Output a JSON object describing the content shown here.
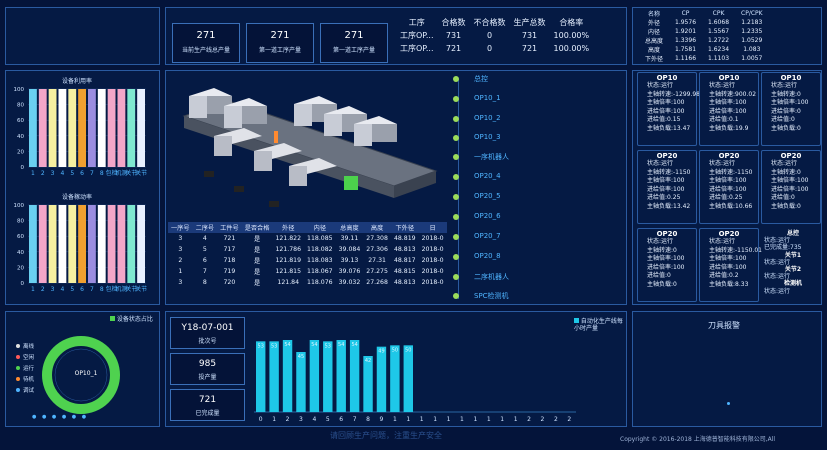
{
  "header": {
    "kpis": [
      {
        "value": "271",
        "label": "当前生产线总产量"
      },
      {
        "value": "271",
        "label": "第一道工序产量"
      },
      {
        "value": "271",
        "label": "第一道工序产量"
      }
    ],
    "process_table": {
      "columns": [
        "工序",
        "合格数",
        "不合格数",
        "生产总数",
        "合格率"
      ],
      "rows": [
        [
          "工序OP...",
          "731",
          "0",
          "731",
          "100.00%"
        ],
        [
          "工序OP...",
          "721",
          "0",
          "721",
          "100.00%"
        ]
      ]
    },
    "cp_table": {
      "columns": [
        "名称",
        "CP",
        "CPK",
        "CP/CPK"
      ],
      "rows": [
        [
          "外径",
          "1.9576",
          "1.6068",
          "1.2183"
        ],
        [
          "内径",
          "1.9201",
          "1.5567",
          "1.2335"
        ],
        [
          "总高度",
          "1.3396",
          "1.2722",
          "1.0529"
        ],
        [
          "高度",
          "1.7581",
          "1.6234",
          "1.083"
        ],
        [
          "下外径",
          "1.1166",
          "1.1103",
          "1.0057"
        ]
      ]
    }
  },
  "utilization_chart": {
    "title": "设备利用率",
    "y_ticks": [
      "100",
      "80",
      "60",
      "40",
      "20",
      "0"
    ],
    "x_labels": [
      "1",
      "2",
      "3",
      "4",
      "5",
      "6",
      "7",
      "8",
      "包检",
      "机测",
      "关节",
      "关节"
    ],
    "chart_data": {
      "type": "bar",
      "ylim": [
        0,
        100
      ],
      "categories": [
        "1",
        "2",
        "3",
        "4",
        "5",
        "6",
        "7",
        "8",
        "包检",
        "机测",
        "关节1",
        "关节2"
      ],
      "values": [
        100,
        100,
        100,
        100,
        100,
        100,
        100,
        100,
        100,
        100,
        100,
        100
      ],
      "colors": [
        "#6ad0f0",
        "#f3a6c8",
        "#f6f0a0",
        "#ffffff",
        "#f6f0a0",
        "#f0a030",
        "#9b8de0",
        "#ffffff",
        "#f3a6c8",
        "#f3a6c8",
        "#7fe8d0",
        "#e8f0ff"
      ]
    }
  },
  "activation_chart": {
    "title": "设备稼动率",
    "y_ticks": [
      "100",
      "80",
      "60",
      "40",
      "20",
      "0"
    ],
    "x_labels": [
      "1",
      "2",
      "3",
      "4",
      "5",
      "6",
      "7",
      "8",
      "包检",
      "机测",
      "关节",
      "关节"
    ],
    "chart_data": {
      "type": "bar",
      "ylim": [
        0,
        100
      ],
      "categories": [
        "1",
        "2",
        "3",
        "4",
        "5",
        "6",
        "7",
        "8",
        "包检",
        "机测",
        "关节1",
        "关节2"
      ],
      "values": [
        100,
        100,
        100,
        100,
        100,
        100,
        100,
        100,
        100,
        100,
        100,
        100
      ],
      "colors": [
        "#6ad0f0",
        "#f3a6c8",
        "#f6f0a0",
        "#ffffff",
        "#f6f0a0",
        "#f0a030",
        "#9b8de0",
        "#ffffff",
        "#f3a6c8",
        "#f3a6c8",
        "#7fe8d0",
        "#e8f0ff"
      ]
    }
  },
  "data_table": {
    "columns": [
      "一序号",
      "二序号",
      "工件号",
      "是否合格",
      "外径",
      "内径",
      "总高度",
      "高度",
      "下外径",
      "日"
    ],
    "rows": [
      [
        "3",
        "4",
        "721",
        "是",
        "121.822",
        "118.085",
        "39.11",
        "27.308",
        "48.819",
        "2018-0"
      ],
      [
        "3",
        "5",
        "717",
        "是",
        "121.786",
        "118.082",
        "39.084",
        "27.306",
        "48.813",
        "2018-0"
      ],
      [
        "2",
        "6",
        "718",
        "是",
        "121.819",
        "118.083",
        "39.13",
        "27.31",
        "48.817",
        "2018-0"
      ],
      [
        "1",
        "7",
        "719",
        "是",
        "121.815",
        "118.067",
        "39.076",
        "27.275",
        "48.815",
        "2018-0"
      ],
      [
        "3",
        "8",
        "720",
        "是",
        "121.84",
        "118.076",
        "39.032",
        "27.268",
        "48.813",
        "2018-0"
      ]
    ]
  },
  "nav_items": [
    "总控",
    "OP10_1",
    "OP10_2",
    "OP10_3",
    "一序机器人",
    "OP20_4",
    "OP20_5",
    "OP20_6",
    "OP20_7",
    "OP20_8",
    "二序机器人",
    "SPC检测机"
  ],
  "machine_cards": [
    {
      "title": "OP10",
      "rows": [
        "状态:运行",
        "主轴转速:-1299.98",
        "主轴倍率:100",
        "进给倍率:100",
        "进给值:0.15",
        "主轴负载:13.47"
      ]
    },
    {
      "title": "OP10",
      "rows": [
        "状态:运行",
        "主轴转速:900.02",
        "主轴倍率:100",
        "进给倍率:100",
        "进给值:0.1",
        "主轴负载:19.9"
      ]
    },
    {
      "title": "OP10",
      "rows": [
        "状态:运行",
        "主轴转速:0",
        "主轴倍率:100",
        "进给倍率:0",
        "进给值:0",
        "主轴负载:0"
      ]
    },
    {
      "title": "OP20",
      "rows": [
        "状态:运行",
        "主轴转速:-1150",
        "主轴倍率:100",
        "进给倍率:100",
        "进给值:0.25",
        "主轴负载:13.42"
      ]
    },
    {
      "title": "OP20",
      "rows": [
        "状态:运行",
        "主轴转速:-1150",
        "主轴倍率:100",
        "进给倍率:100",
        "进给值:0.25",
        "主轴负载:10.66"
      ]
    },
    {
      "title": "OP20",
      "rows": [
        "状态:运行",
        "主轴转速:0",
        "主轴倍率:100",
        "进给倍率:100",
        "进给值:0",
        "主轴负载:0"
      ]
    },
    {
      "title": "OP20",
      "rows": [
        "状态:运行",
        "主轴转速:0",
        "主轴倍率:100",
        "进给倍率:100",
        "进给值:0",
        "主轴负载:0"
      ]
    },
    {
      "title": "OP20",
      "rows": [
        "状态:运行",
        "主轴转速:-1150.01",
        "主轴倍率:100",
        "进给倍率:100",
        "进给值:0.2",
        "主轴负载:8.33"
      ]
    }
  ],
  "robot_list": [
    {
      "name": "总控",
      "status": "状态:运行",
      "extra": "已完成量:735"
    },
    {
      "name": "关节1",
      "status": "状态:运行",
      "extra": ""
    },
    {
      "name": "关节2",
      "status": "状态:运行",
      "extra": ""
    },
    {
      "name": "检测机",
      "status": "状态:运行",
      "extra": ""
    }
  ],
  "donut": {
    "legend_title": "设备状态占比",
    "center_label": "OP10_1",
    "legend": [
      {
        "label": "离线",
        "color": "#e0e0e0"
      },
      {
        "label": "空闲",
        "color": "#ff5a5a"
      },
      {
        "label": "运行",
        "color": "#4fd24f"
      },
      {
        "label": "待机",
        "color": "#ff8a30"
      },
      {
        "label": "调试",
        "color": "#4fb4ff"
      }
    ],
    "chart_data": {
      "type": "pie",
      "categories": [
        "运行"
      ],
      "values": [
        100
      ]
    }
  },
  "stats": [
    {
      "value": "Y18-07-001",
      "label": "批次号"
    },
    {
      "value": "985",
      "label": "投产量"
    },
    {
      "value": "721",
      "label": "已完成量"
    }
  ],
  "hourly_chart": {
    "legend": "自动化生产线每小时产量",
    "x_labels": [
      "0",
      "1",
      "2",
      "3",
      "4",
      "5",
      "6",
      "7",
      "8",
      "9",
      "1",
      "1",
      "1",
      "1",
      "1",
      "1",
      "1",
      "1",
      "1",
      "1",
      "2",
      "2",
      "2",
      "2"
    ],
    "chart_data": {
      "type": "bar",
      "ylim": [
        0,
        60
      ],
      "categories": [
        "0",
        "1",
        "2",
        "3",
        "4",
        "5",
        "6",
        "7",
        "8",
        "9",
        "10",
        "11",
        "12",
        "13",
        "14",
        "15",
        "16",
        "17",
        "18",
        "19",
        "20",
        "21",
        "22",
        "23"
      ],
      "values": [
        53,
        53,
        54,
        45,
        54,
        53,
        54,
        54,
        42,
        49,
        50,
        50,
        0,
        0,
        0,
        0,
        0,
        0,
        0,
        0,
        0,
        0,
        0,
        0
      ],
      "labels": [
        "53",
        "53",
        "54",
        "45",
        "54",
        "53",
        "54",
        "54",
        "42",
        "49",
        "50",
        "50",
        "",
        "",
        "",
        "",
        "",
        "",
        "",
        "",
        "",
        "",
        "",
        ""
      ]
    }
  },
  "tool_alarm": {
    "title": "刀具报警"
  },
  "footer": {
    "subtitle": "请回顾生产问题，注重生产安全",
    "copyright": "Copyright © 2016-2018 上海德普智能科技有限公司,All"
  }
}
